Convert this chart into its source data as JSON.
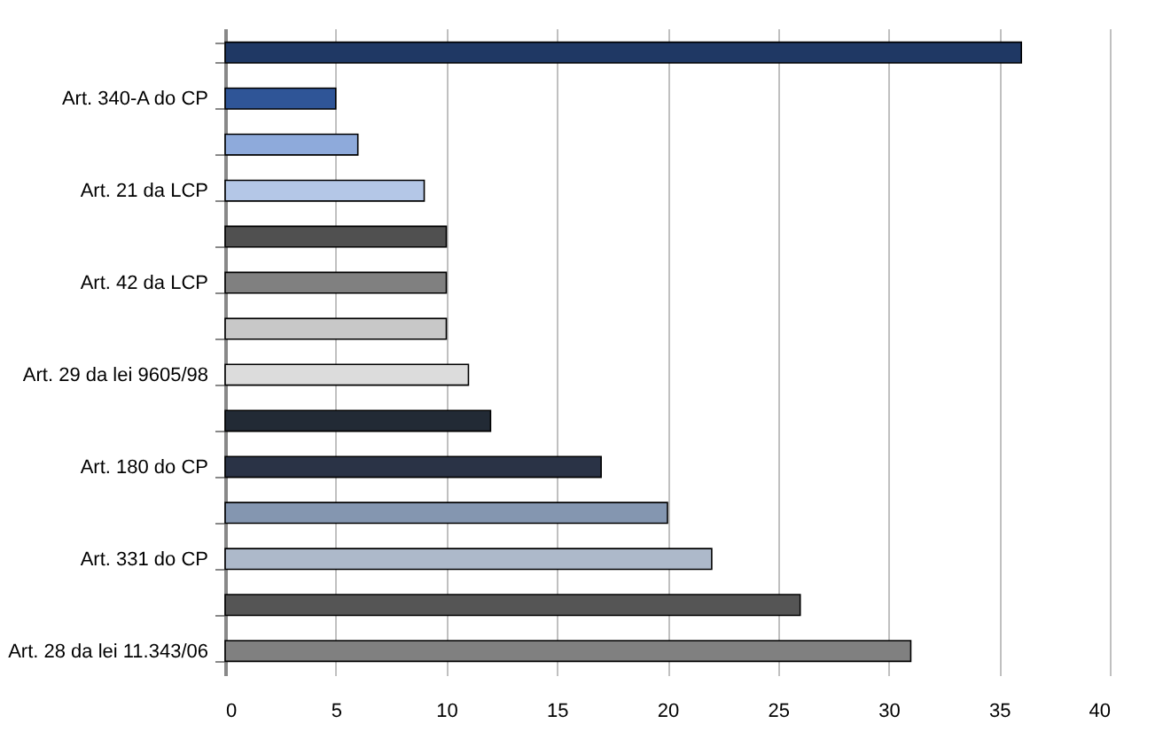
{
  "chart_data": {
    "type": "bar",
    "orientation": "horizontal",
    "categories": [
      null,
      "Art. 340-A do CP",
      null,
      "Art. 21 da LCP",
      null,
      "Art. 42 da LCP",
      null,
      "Art. 29 da lei 9605/98",
      null,
      "Art. 180 do CP",
      null,
      "Art. 331 do CP",
      null,
      "Art. 28 da lei 11.343/06"
    ],
    "values": [
      36,
      5,
      6,
      9,
      10,
      10,
      10,
      11,
      12,
      17,
      20,
      22,
      26,
      31
    ],
    "colors": [
      "#1f3864",
      "#2f5597",
      "#8eaadb",
      "#b4c7e7",
      "#505050",
      "#808080",
      "#c8c8c8",
      "#dcdcdc",
      "#222a35",
      "#2a3346",
      "#8496b0",
      "#adb9ca",
      "#555555",
      "#808080"
    ],
    "xlim": [
      0,
      40
    ],
    "xticks": [
      0,
      5,
      10,
      15,
      20,
      25,
      30,
      35,
      40
    ],
    "grid": "x",
    "legend": false
  }
}
